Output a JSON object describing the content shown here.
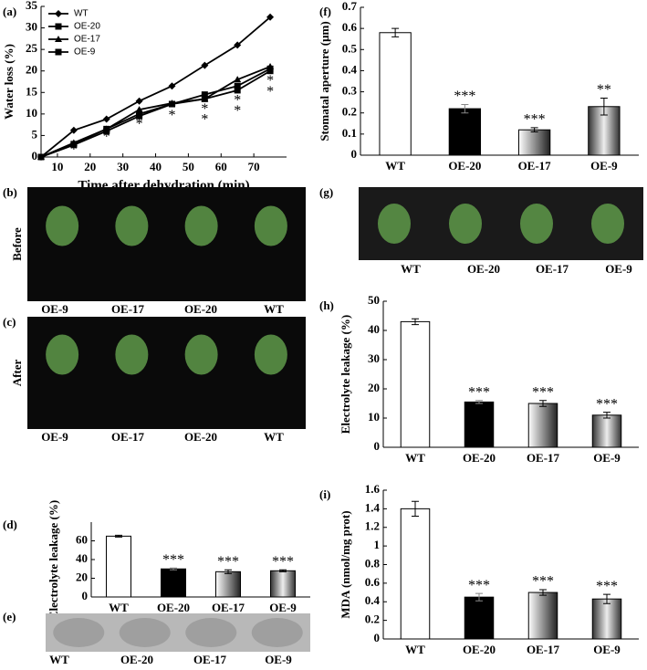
{
  "chart_data": [
    {
      "type": "line",
      "panel": "(a)",
      "ylabel": "Water loss (%)",
      "xlabel": "Time after dehydration (min)",
      "x": [
        5,
        15,
        25,
        35,
        45,
        55,
        65,
        75
      ],
      "xlim": [
        5,
        80
      ],
      "xticks": [
        10,
        20,
        30,
        40,
        50,
        60,
        70
      ],
      "ylim": [
        0,
        35
      ],
      "yticks": [
        0,
        5,
        10,
        15,
        20,
        25,
        30,
        35
      ],
      "legend": "top-left",
      "series": [
        {
          "name": "WT",
          "color": "#000000",
          "marker": "diamond",
          "values": [
            0,
            6.2,
            8.8,
            13,
            16.5,
            21.3,
            26,
            32.5
          ]
        },
        {
          "name": "OE-20",
          "color": "#000000",
          "marker": "square",
          "values": [
            0,
            3,
            6.5,
            10,
            12.3,
            14.5,
            16.5,
            20.5
          ]
        },
        {
          "name": "OE-17",
          "color": "#000000",
          "marker": "triangle",
          "values": [
            0,
            3.3,
            6.5,
            11,
            12.5,
            13.5,
            18,
            21
          ]
        },
        {
          "name": "OE-9",
          "color": "#000000",
          "marker": "square",
          "values": [
            0,
            2.8,
            6,
            9.5,
            12.3,
            13.5,
            15.5,
            20
          ]
        }
      ],
      "annotations": [
        {
          "text": "*",
          "x": 15,
          "y": 1.5
        },
        {
          "text": "*",
          "x": 25,
          "y": 4.5
        },
        {
          "text": "*",
          "x": 35,
          "y": 7.5
        },
        {
          "text": "*",
          "x": 45,
          "y": 9.5
        },
        {
          "text": "*",
          "x": 55,
          "y": 8.5
        },
        {
          "text": "*",
          "x": 55,
          "y": 11
        },
        {
          "text": "*",
          "x": 65,
          "y": 10.5
        },
        {
          "text": "*",
          "x": 65,
          "y": 13
        },
        {
          "text": "*",
          "x": 75,
          "y": 15
        },
        {
          "text": "*",
          "x": 75,
          "y": 17.5
        }
      ]
    },
    {
      "type": "bar",
      "panel": "(f)",
      "ylabel": "Stomatal aperture (μm)",
      "categories": [
        "WT",
        "OE-20",
        "OE-17",
        "OE-9"
      ],
      "values": [
        0.58,
        0.22,
        0.12,
        0.23
      ],
      "errors": [
        0.02,
        0.02,
        0.01,
        0.04
      ],
      "significance": [
        null,
        "***",
        "***",
        "**"
      ],
      "colors": [
        "#ffffff",
        "#000000",
        "url(#grad1)",
        "url(#grad2)"
      ],
      "ylim": [
        0,
        0.7
      ],
      "yticks": [
        0,
        0.1,
        0.2,
        0.3,
        0.4,
        0.5,
        0.6,
        0.7
      ]
    },
    {
      "type": "bar",
      "panel": "(h)",
      "ylabel": "Electrolyte leakage (%)",
      "categories": [
        "WT",
        "OE-20",
        "OE-17",
        "OE-9"
      ],
      "values": [
        43,
        15.5,
        15,
        11
      ],
      "errors": [
        1,
        0.5,
        1,
        1
      ],
      "significance": [
        null,
        "***",
        "***",
        "***"
      ],
      "colors": [
        "#ffffff",
        "#000000",
        "url(#grad1)",
        "url(#grad2)"
      ],
      "ylim": [
        0,
        50
      ],
      "yticks": [
        0,
        10,
        20,
        30,
        40,
        50
      ]
    },
    {
      "type": "bar",
      "panel": "(d)",
      "ylabel": "Electrolyte leakage (%)",
      "categories": [
        "WT",
        "OE-20",
        "OE-17",
        "OE-9"
      ],
      "values": [
        65,
        30,
        27,
        28
      ],
      "errors": [
        1,
        1,
        2,
        1
      ],
      "significance": [
        null,
        "***",
        "***",
        "***"
      ],
      "colors": [
        "#ffffff",
        "#000000",
        "url(#grad1)",
        "url(#grad2)"
      ],
      "ylim": [
        0,
        80
      ],
      "yticks": [
        0,
        20,
        40,
        60
      ]
    },
    {
      "type": "bar",
      "panel": "(i)",
      "ylabel": "MDA (nmol/mg prot)",
      "categories": [
        "WT",
        "OE-20",
        "OE-17",
        "OE-9"
      ],
      "values": [
        1.4,
        0.45,
        0.5,
        0.43
      ],
      "errors": [
        0.08,
        0.04,
        0.03,
        0.05
      ],
      "significance": [
        null,
        "***",
        "***",
        "***"
      ],
      "colors": [
        "#ffffff",
        "#000000",
        "url(#grad1)",
        "url(#grad2)"
      ],
      "ylim": [
        0,
        1.6
      ],
      "yticks": [
        0,
        0.2,
        0.4,
        0.6,
        0.8,
        1,
        1.2,
        1.4,
        1.6
      ]
    }
  ],
  "photo_panels": [
    {
      "panel": "(b)",
      "side_label": "Before",
      "labels": [
        "OE-9",
        "OE-17",
        "OE-20",
        "WT"
      ]
    },
    {
      "panel": "(c)",
      "side_label": "After",
      "labels": [
        "OE-9",
        "OE-17",
        "OE-20",
        "WT"
      ]
    },
    {
      "panel": "(e)",
      "labels": [
        "WT",
        "OE-20",
        "OE-17",
        "OE-9"
      ]
    },
    {
      "panel": "(g)",
      "labels": [
        "WT",
        "OE-20",
        "OE-17",
        "OE-9"
      ]
    }
  ]
}
